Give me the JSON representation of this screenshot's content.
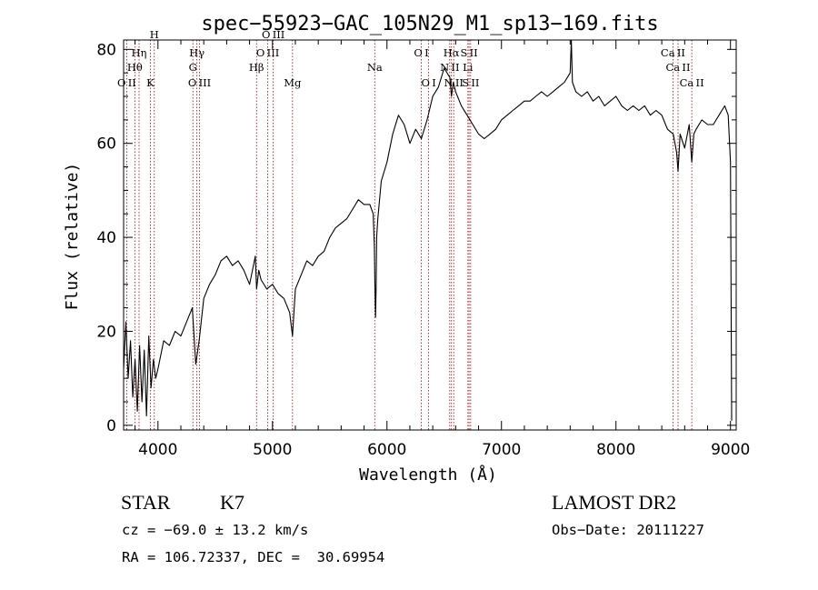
{
  "chart_data": {
    "type": "line",
    "title": "spec−55923−GAC_105N29_M1_sp13−169.fits",
    "xlabel": "Wavelength (Å)",
    "ylabel": "Flux (relative)",
    "xlim": [
      3700,
      9050
    ],
    "ylim": [
      -1,
      82
    ],
    "xticks": [
      4000,
      5000,
      6000,
      7000,
      8000,
      9000
    ],
    "yticks": [
      0,
      20,
      40,
      60,
      80
    ],
    "minor_xtick_step": 200,
    "minor_ytick_step": 5,
    "grid": false,
    "colors": {
      "spectrum": "#000000",
      "line_markers": "#b00000",
      "axes": "#000000"
    },
    "series": [
      {
        "x": [
          3700,
          3720,
          3740,
          3760,
          3780,
          3800,
          3820,
          3840,
          3860,
          3880,
          3900,
          3920,
          3940,
          3960,
          3980,
          4000,
          4050,
          4100,
          4150,
          4200,
          4250,
          4300,
          4330,
          4360,
          4400,
          4450,
          4500,
          4550,
          4600,
          4650,
          4700,
          4750,
          4800,
          4850,
          4861,
          4880,
          4900,
          4950,
          5000,
          5050,
          5100,
          5150,
          5175,
          5200,
          5250,
          5300,
          5350,
          5400,
          5450,
          5500,
          5550,
          5600,
          5650,
          5700,
          5750,
          5800,
          5850,
          5880,
          5890,
          5895,
          5900,
          5905,
          5910,
          5920,
          5950,
          6000,
          6050,
          6100,
          6150,
          6200,
          6250,
          6300,
          6350,
          6400,
          6450,
          6500,
          6550,
          6563,
          6580,
          6600,
          6650,
          6700,
          6750,
          6800,
          6850,
          6900,
          6950,
          7000,
          7050,
          7100,
          7150,
          7200,
          7250,
          7300,
          7350,
          7400,
          7450,
          7500,
          7550,
          7600,
          7610,
          7620,
          7650,
          7700,
          7750,
          7800,
          7850,
          7900,
          7950,
          8000,
          8050,
          8100,
          8150,
          8200,
          8250,
          8300,
          8350,
          8400,
          8450,
          8500,
          8530,
          8542,
          8560,
          8600,
          8640,
          8662,
          8680,
          8700,
          8750,
          8800,
          8850,
          8900,
          8950,
          8980,
          9000,
          9010
        ],
        "y": [
          12,
          22,
          10,
          18,
          6,
          14,
          3,
          17,
          5,
          16,
          2,
          19,
          8,
          14,
          10,
          12,
          18,
          17,
          20,
          19,
          22,
          25,
          13,
          18,
          27,
          30,
          32,
          35,
          36,
          34,
          35,
          33,
          30,
          36,
          29,
          33,
          31,
          29,
          30,
          28,
          27,
          24,
          19,
          29,
          32,
          35,
          34,
          36,
          37,
          40,
          42,
          43,
          44,
          46,
          48,
          47,
          47,
          45,
          38,
          30,
          23,
          29,
          40,
          44,
          52,
          56,
          62,
          66,
          64,
          60,
          63,
          61,
          65,
          70,
          72,
          76,
          74,
          70,
          73,
          71,
          68,
          66,
          64,
          62,
          61,
          62,
          63,
          65,
          66,
          67,
          68,
          69,
          69,
          70,
          71,
          70,
          71,
          72,
          73,
          75,
          82,
          73,
          71,
          70,
          71,
          69,
          70,
          68,
          69,
          70,
          68,
          67,
          68,
          67,
          68,
          66,
          67,
          66,
          63,
          62,
          58,
          54,
          62,
          59,
          64,
          56,
          62,
          63,
          65,
          64,
          64,
          66,
          68,
          66,
          56,
          1
        ]
      }
    ],
    "emission_lines": [
      {
        "name": "O II",
        "wavelength": 3727,
        "row": 3
      },
      {
        "name": "Hη",
        "wavelength": 3835,
        "row": 1
      },
      {
        "name": "Hθ",
        "wavelength": 3798,
        "row": 2
      },
      {
        "name": "K",
        "wavelength": 3934,
        "row": 3
      },
      {
        "name": "H",
        "wavelength": 3968,
        "row": 0
      },
      {
        "name": "Hγ",
        "wavelength": 4340,
        "row": 1
      },
      {
        "name": "G",
        "wavelength": 4305,
        "row": 2
      },
      {
        "name": "O III",
        "wavelength": 4363,
        "row": 3
      },
      {
        "name": "Hβ",
        "wavelength": 4861,
        "row": 2
      },
      {
        "name": "O III",
        "wavelength": 4959,
        "row": 1
      },
      {
        "name": "O III",
        "wavelength": 5007,
        "row": 0
      },
      {
        "name": "Mg",
        "wavelength": 5175,
        "row": 3
      },
      {
        "name": "Na",
        "wavelength": 5893,
        "row": 2
      },
      {
        "name": "O I",
        "wavelength": 6300,
        "row": 1
      },
      {
        "name": "O I",
        "wavelength": 6364,
        "row": 3
      },
      {
        "name": "Hα",
        "wavelength": 6563,
        "row": 1
      },
      {
        "name": "N II",
        "wavelength": 6548,
        "row": 2
      },
      {
        "name": "N II",
        "wavelength": 6583,
        "row": 3
      },
      {
        "name": "S II",
        "wavelength": 6717,
        "row": 1
      },
      {
        "name": "Li",
        "wavelength": 6707,
        "row": 2
      },
      {
        "name": "S II",
        "wavelength": 6731,
        "row": 3
      },
      {
        "name": "Ca II",
        "wavelength": 8498,
        "row": 1
      },
      {
        "name": "Ca II",
        "wavelength": 8542,
        "row": 2
      },
      {
        "name": "Ca II",
        "wavelength": 8662,
        "row": 3
      }
    ]
  },
  "info": {
    "class": "STAR",
    "subclass": "K7",
    "survey": "LAMOST DR2",
    "cz": "cz = −69.0 ± 13.2 km/s",
    "obs_date": "Obs−Date: 20111227",
    "coords": "RA = 106.72337, DEC =  30.69954"
  }
}
